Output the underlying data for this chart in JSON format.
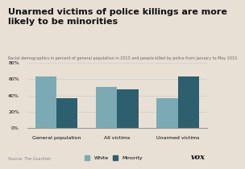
{
  "title": "Unarmed victims of police killings are more\nlikely to be minorities",
  "subtitle": "Racial demographics in percent of general population in 2015 and people killed by police from January to May 2015",
  "categories": [
    "General population",
    "All victims",
    "Unarmed victims"
  ],
  "white_values": [
    63,
    50,
    37
  ],
  "minority_values": [
    37,
    47,
    63
  ],
  "white_color": "#7baab5",
  "minority_color": "#2e5f6e",
  "ylim": [
    0,
    80
  ],
  "yticks": [
    0,
    20,
    40,
    60,
    80
  ],
  "source": "Source: The Guardian",
  "logo": "vox",
  "bar_width": 0.35,
  "bg_color": "#e8e0d5",
  "legend_labels": [
    "White",
    "Minority"
  ],
  "title_fontsize": 8.0,
  "subtitle_fontsize": 3.5,
  "tick_fontsize": 4.5,
  "source_fontsize": 3.5,
  "logo_fontsize": 7.0
}
